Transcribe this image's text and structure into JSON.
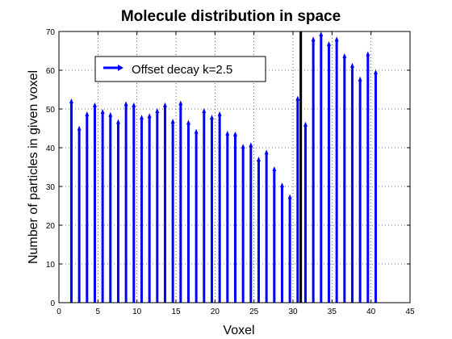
{
  "chart_data": {
    "type": "bar",
    "title": "Molecule distribution in space",
    "xlabel": "Voxel",
    "ylabel": "Number of particles in given voxel",
    "xlim": [
      0,
      45
    ],
    "ylim": [
      0,
      70
    ],
    "xticks": [
      0,
      5,
      10,
      15,
      20,
      25,
      30,
      35,
      40,
      45
    ],
    "yticks": [
      0,
      10,
      20,
      30,
      40,
      50,
      60,
      70
    ],
    "grid": true,
    "legend_position": "top-left",
    "series": [
      {
        "name": "Offset decay k=2.5",
        "color": "#0000ff",
        "x": [
          1.6,
          2.6,
          3.6,
          4.6,
          5.6,
          6.6,
          7.6,
          8.6,
          9.6,
          10.6,
          11.6,
          12.6,
          13.6,
          14.6,
          15.6,
          16.6,
          17.6,
          18.6,
          19.6,
          20.6,
          21.6,
          22.6,
          23.6,
          24.6,
          25.6,
          26.6,
          27.6,
          28.6,
          29.6,
          30.6,
          31.6,
          32.6,
          33.6,
          34.6,
          35.6,
          36.6,
          37.6,
          38.6,
          39.6,
          40.6
        ],
        "values": [
          52.5,
          45.5,
          49.2,
          51.5,
          49.8,
          49.0,
          47.2,
          51.8,
          51.5,
          48.3,
          48.7,
          50.0,
          51.5,
          47.3,
          52.0,
          47.0,
          44.7,
          50.0,
          48.3,
          49.2,
          44.2,
          44.0,
          40.8,
          41.2,
          37.5,
          39.3,
          35.0,
          30.8,
          27.8,
          53.2,
          46.5,
          68.5,
          69.8,
          67.3,
          68.5,
          64.2,
          61.7,
          58.2,
          64.7,
          60.0
        ]
      }
    ],
    "vline": {
      "x": 31,
      "color": "#000000"
    }
  }
}
